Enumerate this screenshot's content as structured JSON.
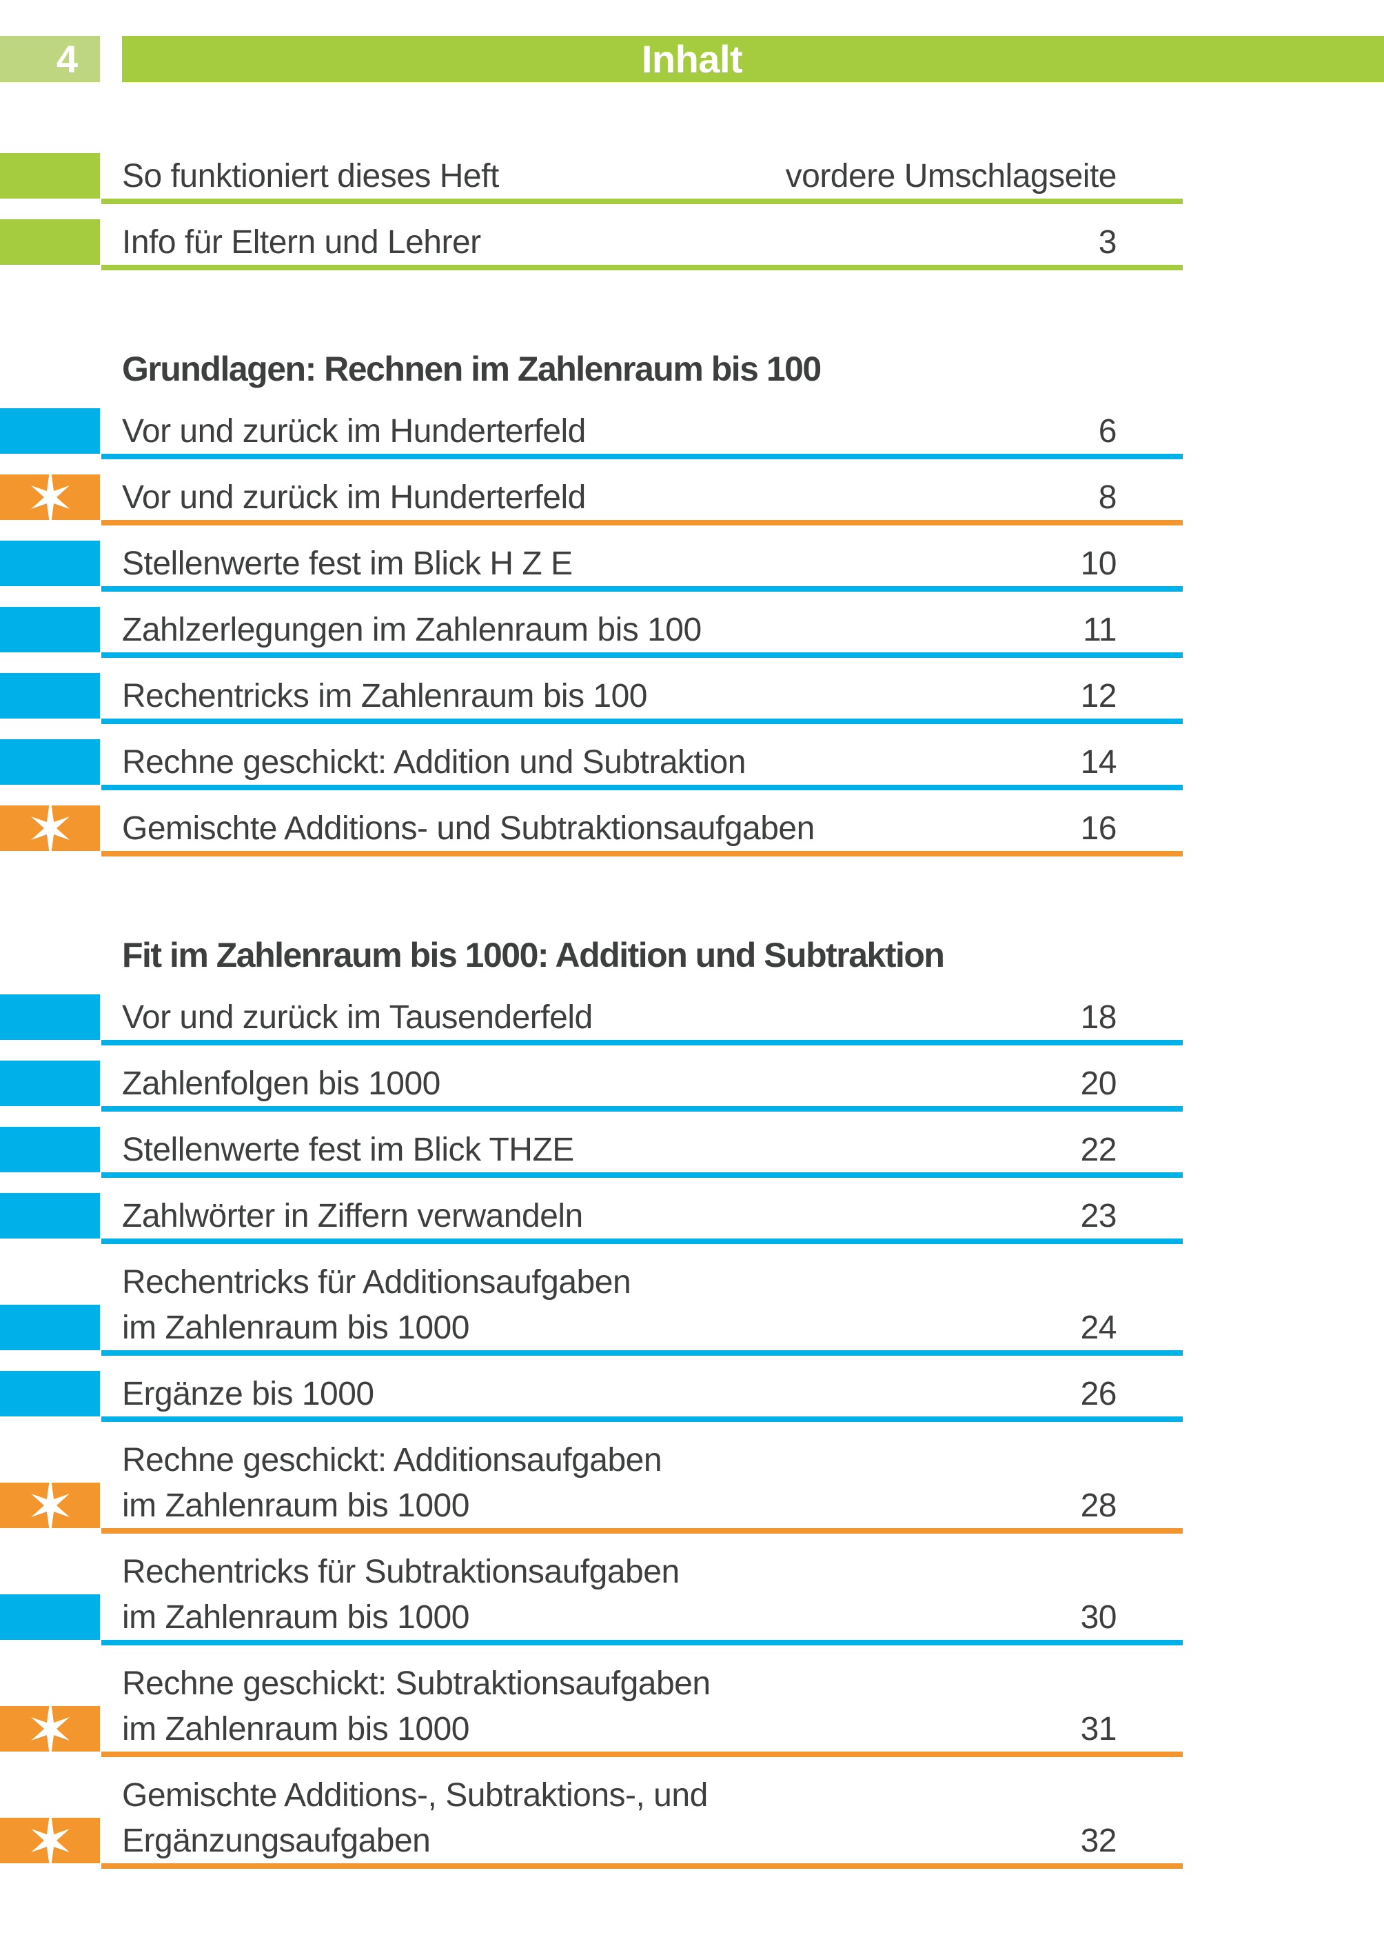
{
  "page": {
    "number": "4",
    "header_title": "Inhalt"
  },
  "colors": {
    "green": "#a5cb3e",
    "green_light": "#bfd681",
    "blue": "#00b1e9",
    "orange": "#f3962d",
    "text": "#3d3e3e"
  },
  "sections": [
    {
      "heading": null,
      "entries": [
        {
          "lines": [
            "So funktioniert dieses Heft"
          ],
          "page": "vordere Umschlagseite",
          "tab": "green",
          "star": false
        },
        {
          "lines": [
            "Info für Eltern und Lehrer"
          ],
          "page": "3",
          "tab": "green",
          "star": false
        }
      ]
    },
    {
      "heading": "Grundlagen: Rechnen im Zahlenraum bis 100",
      "entries": [
        {
          "lines": [
            "Vor und zurück im Hunderterfeld"
          ],
          "page": "6",
          "tab": "blue",
          "star": false
        },
        {
          "lines": [
            "Vor und zurück im Hunderterfeld"
          ],
          "page": "8",
          "tab": "orange",
          "star": true
        },
        {
          "lines": [
            "Stellenwerte fest im Blick H Z E"
          ],
          "page": "10",
          "tab": "blue",
          "star": false
        },
        {
          "lines": [
            "Zahlzerlegungen im Zahlenraum bis 100"
          ],
          "page": "11",
          "tab": "blue",
          "star": false
        },
        {
          "lines": [
            "Rechentricks im Zahlenraum bis 100"
          ],
          "page": "12",
          "tab": "blue",
          "star": false
        },
        {
          "lines": [
            "Rechne geschickt: Addition und Subtraktion"
          ],
          "page": "14",
          "tab": "blue",
          "star": false
        },
        {
          "lines": [
            "Gemischte Additions- und Subtraktionsaufgaben"
          ],
          "page": "16",
          "tab": "orange",
          "star": true
        }
      ]
    },
    {
      "heading": "Fit im Zahlenraum bis 1000: Addition und Subtraktion",
      "entries": [
        {
          "lines": [
            "Vor und zurück im Tausenderfeld"
          ],
          "page": "18",
          "tab": "blue",
          "star": false
        },
        {
          "lines": [
            "Zahlenfolgen bis 1000"
          ],
          "page": "20",
          "tab": "blue",
          "star": false
        },
        {
          "lines": [
            "Stellenwerte fest im Blick THZE"
          ],
          "page": "22",
          "tab": "blue",
          "star": false
        },
        {
          "lines": [
            "Zahlwörter in Ziffern verwandeln"
          ],
          "page": "23",
          "tab": "blue",
          "star": false
        },
        {
          "lines": [
            "Rechentricks für Additionsaufgaben",
            "im Zahlenraum bis 1000"
          ],
          "page": "24",
          "tab": "blue",
          "star": false
        },
        {
          "lines": [
            "Ergänze bis 1000"
          ],
          "page": "26",
          "tab": "blue",
          "star": false
        },
        {
          "lines": [
            "Rechne geschickt: Additionsaufgaben",
            "im Zahlenraum bis 1000"
          ],
          "page": "28",
          "tab": "orange",
          "star": true
        },
        {
          "lines": [
            "Rechentricks für Subtraktionsaufgaben",
            "im Zahlenraum bis 1000"
          ],
          "page": "30",
          "tab": "blue",
          "star": false
        },
        {
          "lines": [
            "Rechne geschickt: Subtraktionsaufgaben",
            "im Zahlenraum bis 1000"
          ],
          "page": "31",
          "tab": "orange",
          "star": true
        },
        {
          "lines": [
            "Gemischte Additions-, Subtraktions-, und",
            "Ergänzungsaufgaben"
          ],
          "page": "32",
          "tab": "orange",
          "star": true
        }
      ]
    }
  ]
}
